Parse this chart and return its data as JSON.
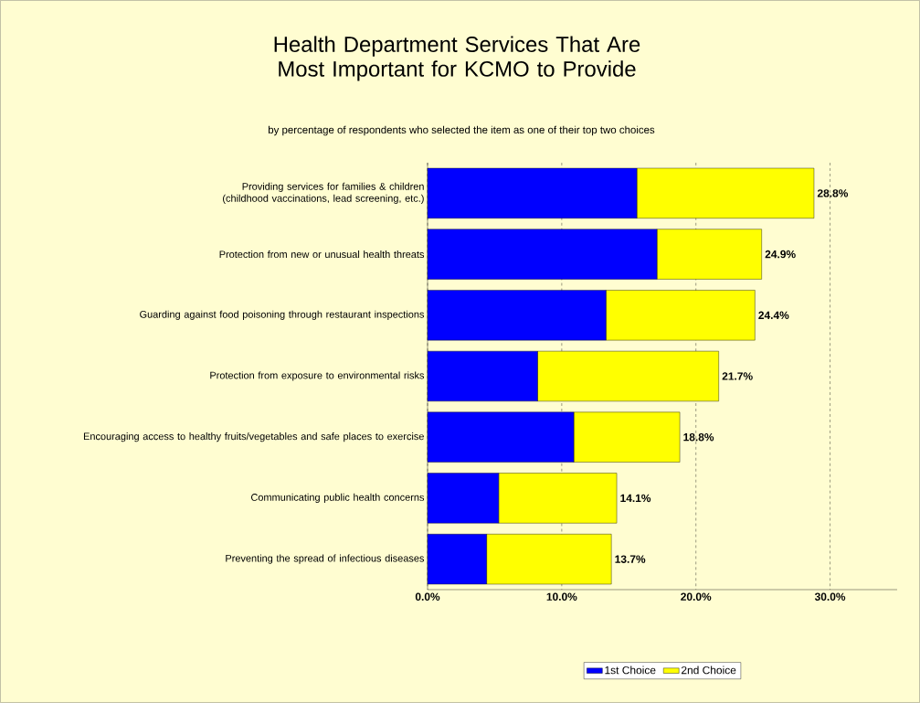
{
  "chart_data": {
    "type": "bar",
    "orientation": "horizontal",
    "stacked": true,
    "title": "Health Department Services That Are Most Important for KCMO to Provide",
    "subtitle": "by percentage of respondents who selected the item as one of their top two choices",
    "categories": [
      "Providing services for families & children (childhood vaccinations, lead screening, etc.)",
      "Protection from new or unusual health threats",
      "Guarding against food poisoning through restaurant inspections",
      "Protection from exposure to environmental risks",
      "Encouraging access to healthy fruits/vegetables and safe places to exercise",
      "Communicating public health concerns",
      "Preventing the spread of infectious diseases"
    ],
    "series": [
      {
        "name": "1st Choice",
        "color": "#0000ff",
        "values": [
          15.6,
          17.1,
          13.3,
          8.2,
          10.9,
          5.3,
          4.4
        ]
      },
      {
        "name": "2nd Choice",
        "color": "#ffff00",
        "values": [
          13.2,
          7.8,
          11.1,
          13.5,
          7.9,
          8.8,
          9.3
        ]
      }
    ],
    "totals": [
      "28.8%",
      "24.9%",
      "24.4%",
      "21.7%",
      "18.8%",
      "14.1%",
      "13.7%"
    ],
    "xlim": [
      0,
      35
    ],
    "xticks": [
      {
        "value": 0,
        "label": "0.0%"
      },
      {
        "value": 10,
        "label": "10.0%"
      },
      {
        "value": 20,
        "label": "20.0%"
      },
      {
        "value": 30,
        "label": "30.0%"
      }
    ],
    "grid": "x",
    "legend": "bottom"
  }
}
